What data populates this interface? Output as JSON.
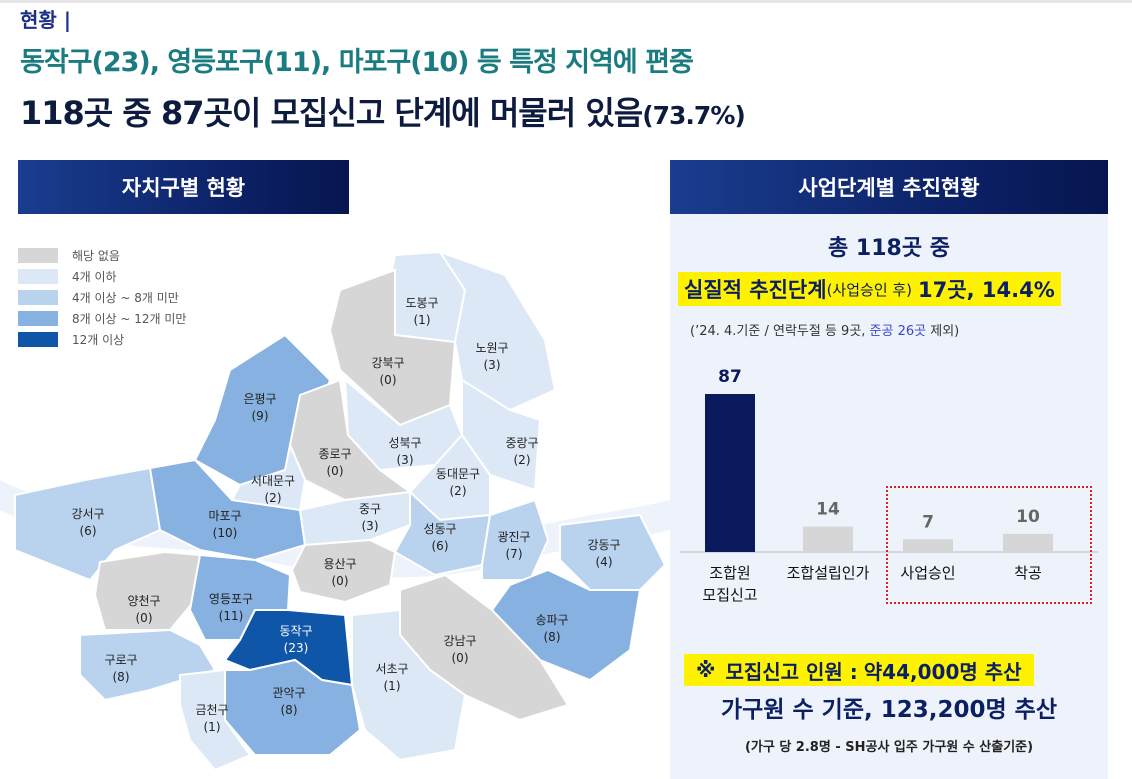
{
  "header": {
    "tag": "현황 |",
    "line1": "동작구(23), 영등포구(11), 마포구(10) 등 특정 지역에 편중",
    "line2_main": "118곳 중 87곳이 모집신고 단계에 머물러 있음",
    "line2_pct": "(73.7%)"
  },
  "left": {
    "title": "자치구별 현황",
    "legend": [
      {
        "label": "해당 없음",
        "color": "#d6d6d6"
      },
      {
        "label": "4개 이하",
        "color": "#dce8f6"
      },
      {
        "label": "4개 이상 ~ 8개 미만",
        "color": "#b9d2ee"
      },
      {
        "label": "8개 이상 ~ 12개 미만",
        "color": "#86b1e0"
      },
      {
        "label": "12개 이상",
        "color": "#0f56a8"
      }
    ],
    "districts": [
      {
        "name": "도봉구",
        "count": "(1)"
      },
      {
        "name": "노원구",
        "count": "(3)"
      },
      {
        "name": "강북구",
        "count": "(0)"
      },
      {
        "name": "은평구",
        "count": "(9)"
      },
      {
        "name": "성북구",
        "count": "(3)"
      },
      {
        "name": "중랑구",
        "count": "(2)"
      },
      {
        "name": "종로구",
        "count": "(0)"
      },
      {
        "name": "서대문구",
        "count": "(2)"
      },
      {
        "name": "동대문구",
        "count": "(2)"
      },
      {
        "name": "강서구",
        "count": "(6)"
      },
      {
        "name": "마포구",
        "count": "(10)"
      },
      {
        "name": "중구",
        "count": "(3)"
      },
      {
        "name": "성동구",
        "count": "(6)"
      },
      {
        "name": "광진구",
        "count": "(7)"
      },
      {
        "name": "강동구",
        "count": "(4)"
      },
      {
        "name": "용산구",
        "count": "(0)"
      },
      {
        "name": "양천구",
        "count": "(0)"
      },
      {
        "name": "영등포구",
        "count": "(11)"
      },
      {
        "name": "송파구",
        "count": "(8)"
      },
      {
        "name": "동작구",
        "count": "(23)"
      },
      {
        "name": "강남구",
        "count": "(0)"
      },
      {
        "name": "구로구",
        "count": "(8)"
      },
      {
        "name": "서초구",
        "count": "(1)"
      },
      {
        "name": "관악구",
        "count": "(8)"
      },
      {
        "name": "금천구",
        "count": "(1)"
      }
    ]
  },
  "right": {
    "title": "사업단계별 추진현황",
    "total": "총 118곳 중",
    "actual_main": "실질적 추진단계",
    "actual_paren": "(사업승인 후)",
    "actual_value": "17곳, 14.4%",
    "note_pre": "(’24. 4.기준 / 연락두절 등 9곳, ",
    "note_blue": "준공 26곳",
    "note_post": " 제외)",
    "recruit_symbol": "※",
    "recruit_label": "모집신고 인원 :",
    "recruit_value": "약44,000명 추산",
    "family_line": "가구원 수 기준, 123,200명 추산",
    "basis_line": "(가구 당 2.8명 - SH공사 입주 가구원 수 산출기준)"
  },
  "chart_data": {
    "type": "bar",
    "categories": [
      "조합원\n모집신고",
      "조합설립인가",
      "사업승인",
      "착공"
    ],
    "values": [
      87,
      14,
      7,
      10
    ],
    "colors": [
      "#0b1a5c",
      "#d6d6d6",
      "#d6d6d6",
      "#d6d6d6"
    ],
    "value_colors": [
      "#0b1a5c",
      "#666666",
      "#666666",
      "#666666"
    ],
    "ylim": [
      0,
      87
    ],
    "grid": false,
    "highlight": [
      "사업승인",
      "착공"
    ]
  }
}
